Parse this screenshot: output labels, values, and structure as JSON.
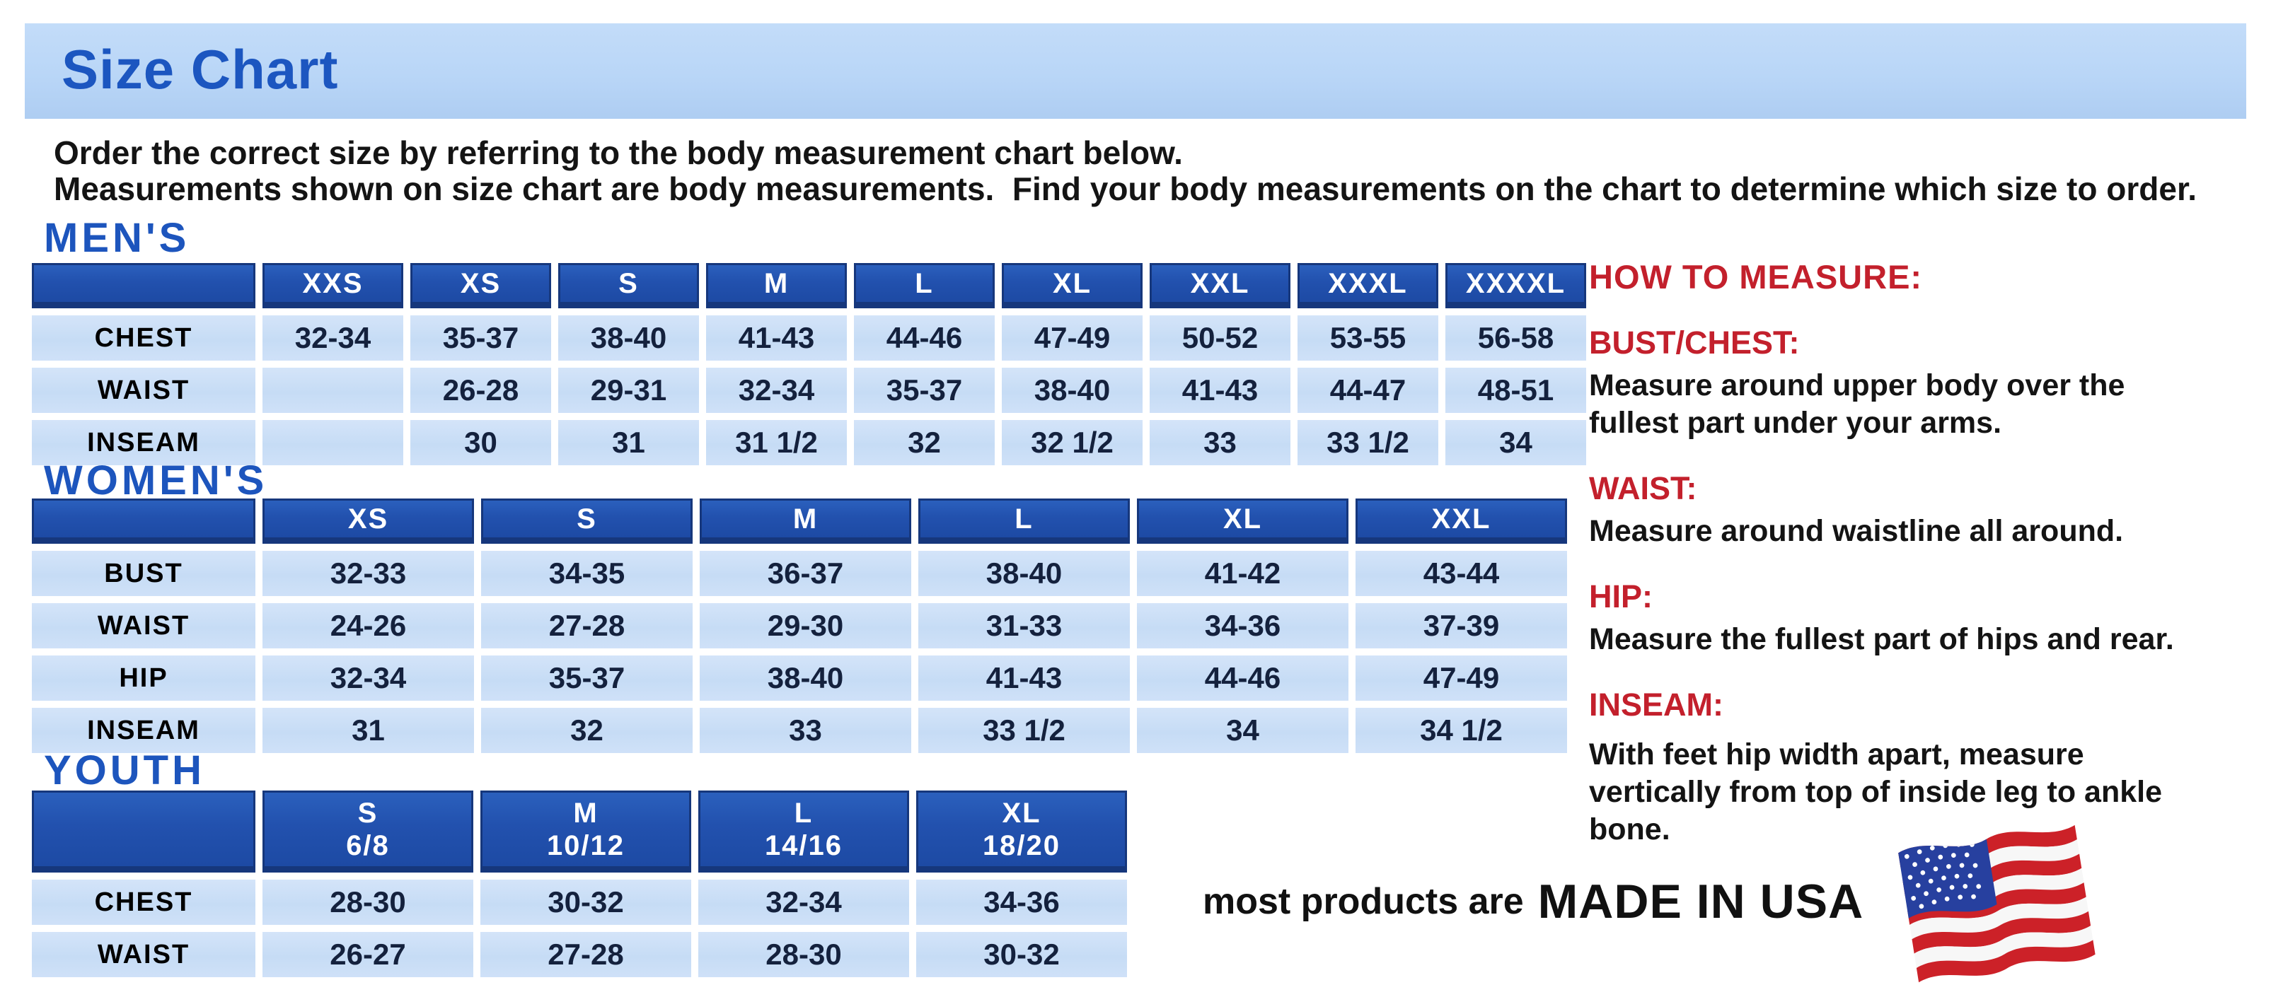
{
  "page": {
    "title": "Size Chart",
    "intro_lines": [
      "Order the correct size by referring to the body measurement chart below.",
      "Measurements shown on size chart are body measurements.  Find your body measurements on the chart to determine which size to order."
    ]
  },
  "colors": {
    "banner_bg": "#b9d6f7",
    "heading_blue": "#1d55bd",
    "table_header_bg": "#2251ae",
    "table_header_border": "#16377c",
    "table_cell_bg": "#c6dcf5",
    "red_accent": "#c3202c",
    "cell_text": "#14213d"
  },
  "tables": [
    {
      "id": "mens",
      "heading": "MEN'S",
      "columns": [
        "",
        "XXS",
        "XS",
        "S",
        "M",
        "L",
        "XL",
        "XXL",
        "XXXL",
        "XXXXL"
      ],
      "rows": [
        {
          "label": "CHEST",
          "values": [
            "32-34",
            "35-37",
            "38-40",
            "41-43",
            "44-46",
            "47-49",
            "50-52",
            "53-55",
            "56-58"
          ]
        },
        {
          "label": "WAIST",
          "values": [
            "",
            "26-28",
            "29-31",
            "32-34",
            "35-37",
            "38-40",
            "41-43",
            "44-47",
            "48-51"
          ]
        },
        {
          "label": "INSEAM",
          "values": [
            "",
            "30",
            "31",
            "31 1/2",
            "32",
            "32 1/2",
            "33",
            "33 1/2",
            "34"
          ]
        }
      ]
    },
    {
      "id": "womens",
      "heading": "WOMEN'S",
      "columns": [
        "",
        "XS",
        "S",
        "M",
        "L",
        "XL",
        "XXL"
      ],
      "rows": [
        {
          "label": "BUST",
          "values": [
            "32-33",
            "34-35",
            "36-37",
            "38-40",
            "41-42",
            "43-44"
          ]
        },
        {
          "label": "WAIST",
          "values": [
            "24-26",
            "27-28",
            "29-30",
            "31-33",
            "34-36",
            "37-39"
          ]
        },
        {
          "label": "HIP",
          "values": [
            "32-34",
            "35-37",
            "38-40",
            "41-43",
            "44-46",
            "47-49"
          ]
        },
        {
          "label": "INSEAM",
          "values": [
            "31",
            "32",
            "33",
            "33 1/2",
            "34",
            "34 1/2"
          ]
        }
      ]
    },
    {
      "id": "youth",
      "heading": "YOUTH",
      "columns": [
        "",
        "S\n6/8",
        "M\n10/12",
        "L\n14/16",
        "XL\n18/20"
      ],
      "rows": [
        {
          "label": "CHEST",
          "values": [
            "28-30",
            "30-32",
            "32-34",
            "34-36"
          ]
        },
        {
          "label": "WAIST",
          "values": [
            "26-27",
            "27-28",
            "28-30",
            "30-32"
          ]
        }
      ]
    }
  ],
  "how_to_measure": {
    "heading": "HOW TO MEASURE:",
    "items": [
      {
        "key": "bust",
        "label": "BUST/CHEST:",
        "text": "Measure around upper body over the fullest part under your arms."
      },
      {
        "key": "waist",
        "label": "WAIST:",
        "text": "Measure around waistline all around."
      },
      {
        "key": "hip",
        "label": "HIP:",
        "text": "Measure the fullest part of hips and rear."
      },
      {
        "key": "inseam",
        "label": "INSEAM:",
        "text": "With feet hip width apart, measure vertically from top of inside leg to ankle bone."
      }
    ]
  },
  "footer": {
    "made_in_prefix": "most products are",
    "made_in": "MADE IN USA",
    "flag_icon": "usa-flag-icon"
  }
}
